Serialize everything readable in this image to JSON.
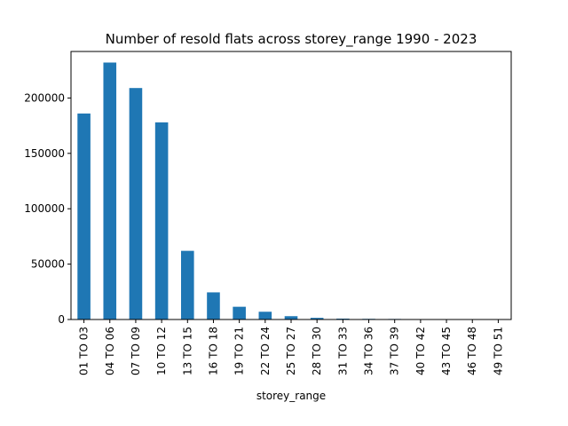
{
  "chart_data": {
    "type": "bar",
    "title": "Number of resold flats across storey_range 1990 - 2023",
    "xlabel": "storey_range",
    "ylabel": "",
    "categories": [
      "01 TO 03",
      "04 TO 06",
      "07 TO 09",
      "10 TO 12",
      "13 TO 15",
      "16 TO 18",
      "19 TO 21",
      "22 TO 24",
      "25 TO 27",
      "28 TO 30",
      "31 TO 33",
      "34 TO 36",
      "37 TO 39",
      "40 TO 42",
      "43 TO 45",
      "46 TO 48",
      "49 TO 51"
    ],
    "values": [
      186000,
      232000,
      209000,
      178000,
      62000,
      24500,
      11500,
      7000,
      3000,
      1500,
      800,
      600,
      500,
      100,
      80,
      40,
      20
    ],
    "ylim": [
      0,
      242000
    ],
    "yticks": [
      0,
      50000,
      100000,
      150000,
      200000
    ],
    "bar_color": "#1f77b4",
    "grid": false,
    "legend": "none"
  }
}
